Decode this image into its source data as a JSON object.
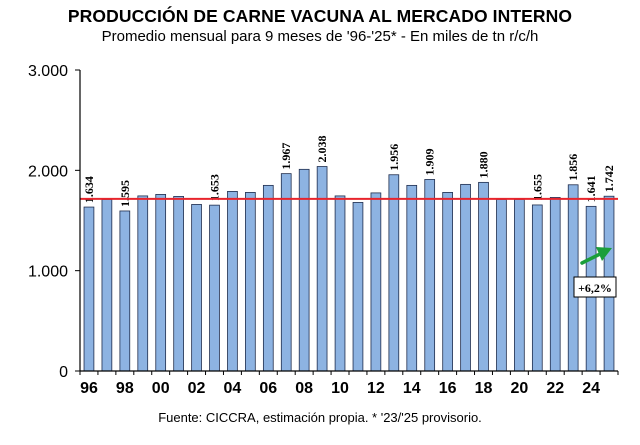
{
  "chart_data": {
    "type": "bar",
    "title": "PRODUCCIÓN DE CARNE VACUNA AL MERCADO INTERNO",
    "subtitle": "Promedio mensual para 9 meses de '96-'25* - En miles de tn r/c/h",
    "source": "Fuente: CICCRA, estimación propia. * '23/'25 provisorio.",
    "categories": [
      "96",
      "97",
      "98",
      "99",
      "00",
      "01",
      "02",
      "03",
      "04",
      "05",
      "06",
      "07",
      "08",
      "09",
      "10",
      "11",
      "12",
      "13",
      "14",
      "15",
      "16",
      "17",
      "18",
      "19",
      "20",
      "21",
      "22",
      "23",
      "24",
      "25"
    ],
    "x_tick_labels": [
      "96",
      "98",
      "00",
      "02",
      "04",
      "06",
      "08",
      "10",
      "12",
      "14",
      "16",
      "18",
      "20",
      "22",
      "24"
    ],
    "values": [
      1634,
      1710,
      1595,
      1745,
      1760,
      1740,
      1660,
      1653,
      1790,
      1780,
      1850,
      1967,
      2010,
      2038,
      1745,
      1680,
      1775,
      1956,
      1850,
      1909,
      1780,
      1860,
      1880,
      1710,
      1710,
      1655,
      1730,
      1856,
      1641,
      1742
    ],
    "data_labels": {
      "0": "1.634",
      "2": "1.595",
      "7": "1.653",
      "11": "1.967",
      "13": "2.038",
      "17": "1.956",
      "19": "1.909",
      "22": "1.880",
      "25": "1.655",
      "27": "1.856",
      "28": "1.641",
      "29": "1.742"
    },
    "y_ticks": [
      "0",
      "1.000",
      "2.000",
      "3.000"
    ],
    "ylim": [
      0,
      3000
    ],
    "reference_line": {
      "value": 1715,
      "color": "#e8242c"
    },
    "annotation": {
      "text": "+6,2%",
      "color": "#1a9e3a"
    },
    "bar_color": "#8db3e2",
    "bar_edge": "#1f2d4d",
    "xlabel": "",
    "ylabel": "",
    "grid": false,
    "legend": "none"
  }
}
